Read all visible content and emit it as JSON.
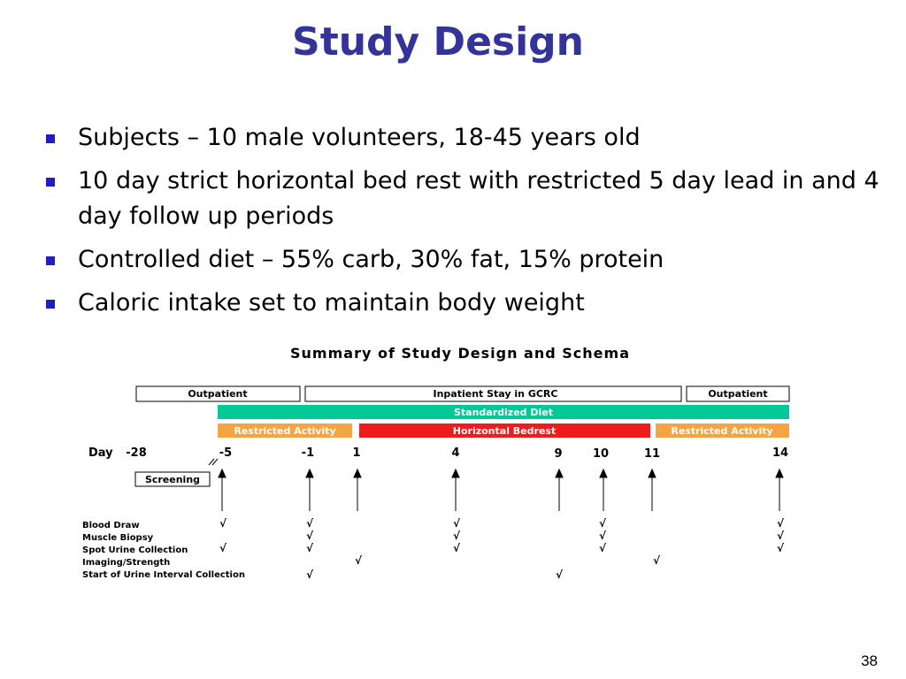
{
  "slide": {
    "title": "Study Design",
    "bullets": [
      "Subjects – 10 male volunteers, 18-45 years old",
      "10 day strict horizontal bed rest with restricted 5 day lead in and 4 day follow up periods",
      "Controlled diet – 55% carb, 30% fat, 15% protein",
      "Caloric intake set to maintain body weight"
    ],
    "slide_number": "38"
  },
  "schema": {
    "title": "Summary of Study Design and Schema",
    "phase_bars": [
      {
        "label": "Outpatient",
        "color": "#ffffff"
      },
      {
        "label": "Inpatient Stay in GCRC",
        "color": "#ffffff"
      },
      {
        "label": "Outpatient",
        "color": "#ffffff"
      }
    ],
    "diet_bar": {
      "label": "Standardized Diet",
      "color": "#00c896"
    },
    "activity_bars": [
      {
        "label": "Restricted Activity",
        "color": "#f4a442"
      },
      {
        "label": "Horizontal Bedrest",
        "color": "#ee1c1c"
      },
      {
        "label": "Restricted Activity",
        "color": "#f4a442"
      }
    ],
    "day_label": "Day",
    "days": [
      "-28",
      "-5",
      "-1",
      "1",
      "4",
      "9",
      "10",
      "11",
      "14"
    ],
    "screening_label": "Screening",
    "check_mark": "√",
    "procedures": [
      {
        "name": "Blood Draw",
        "days": [
          "-5",
          "-1",
          "4",
          "10",
          "14"
        ]
      },
      {
        "name": "Muscle Biopsy",
        "days": [
          "-1",
          "4",
          "10",
          "14"
        ]
      },
      {
        "name": "Spot Urine Collection",
        "days": [
          "-5",
          "-1",
          "4",
          "10",
          "14"
        ]
      },
      {
        "name": "Imaging/Strength",
        "days": [
          "1",
          "11"
        ]
      },
      {
        "name": "Start of Urine Interval Collection",
        "days": [
          "-1",
          "9"
        ]
      }
    ]
  }
}
